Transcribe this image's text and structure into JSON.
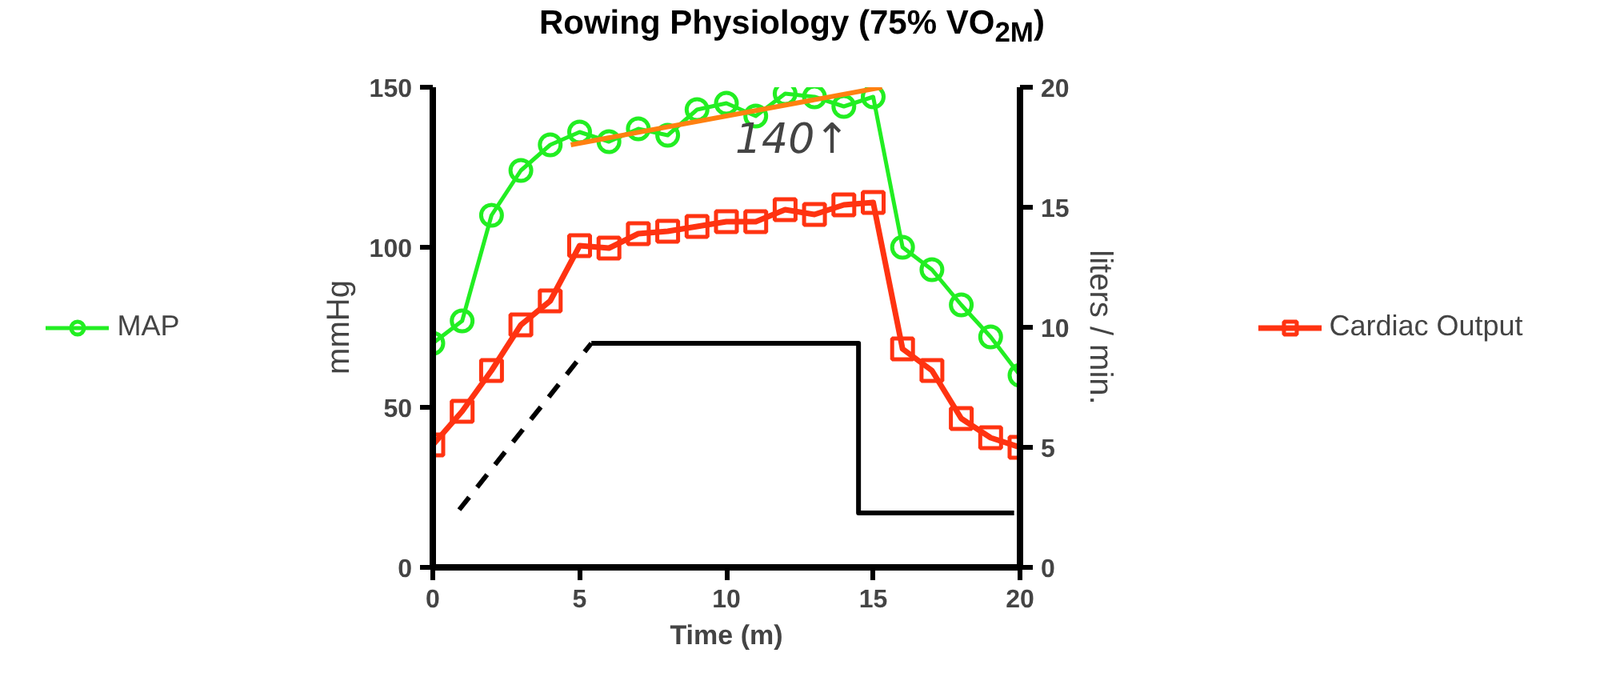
{
  "chart_data": {
    "type": "line",
    "title": "Rowing Physiology (75% VO$_{2M}$)",
    "xlabel": "Time (m)",
    "ylabel": "mmHg",
    "y2label": "liters / min.",
    "x": [
      0,
      1,
      2,
      3,
      4,
      5,
      6,
      7,
      8,
      9,
      10,
      11,
      12,
      13,
      14,
      15,
      16,
      17,
      18,
      19,
      20
    ],
    "series": [
      {
        "name": "MAP",
        "color": "#22ee22",
        "marker": "circle",
        "values": [
          70,
          77,
          110,
          124,
          132,
          136,
          133,
          137,
          135,
          143,
          145,
          141,
          148,
          147,
          144,
          147,
          100,
          93,
          82,
          72,
          60
        ]
      },
      {
        "name": "Cardiac Output",
        "color": "#ff3311",
        "marker": "square",
        "axis": "y2",
        "values": [
          5.1,
          6.5,
          8.2,
          10.1,
          11.1,
          13.4,
          13.3,
          13.9,
          14.0,
          14.2,
          14.4,
          14.4,
          14.9,
          14.7,
          15.1,
          15.2,
          9.1,
          8.2,
          6.2,
          5.4,
          5.0
        ]
      },
      {
        "color": "#000000",
        "marker": "none",
        "line_style": "dashed",
        "x": [
          0.9,
          5.4
        ],
        "values": [
          18,
          70
        ]
      },
      {
        "color": "#000000",
        "marker": "none",
        "line_style": "solid",
        "x": [
          5.4,
          14.5,
          14.5,
          19.8
        ],
        "values": [
          70,
          70,
          17,
          17
        ]
      },
      {
        "color": "#ff8010",
        "marker": "none",
        "line_style": "solid",
        "x": [
          4.7,
          15.3
        ],
        "values": [
          132,
          150
        ]
      }
    ],
    "annotations": [
      "140↑"
    ],
    "xlim": [
      0,
      20
    ],
    "ylim": [
      0,
      150
    ],
    "y2lim": [
      0,
      20
    ],
    "xticks": [
      0,
      5,
      10,
      15,
      20
    ],
    "yticks": [
      0,
      50,
      100,
      150
    ],
    "y2ticks": [
      0,
      5,
      10,
      15,
      20
    ],
    "grid": false,
    "legend": "right"
  }
}
